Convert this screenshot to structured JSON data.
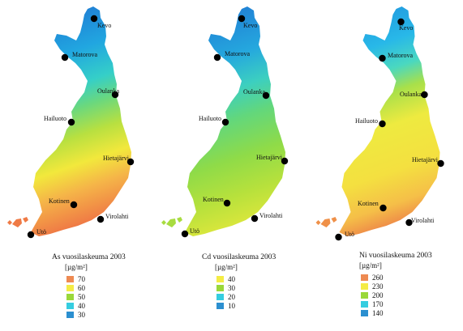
{
  "panels": [
    {
      "id": "as",
      "legend_title": "As vuosilaskeuma 2003",
      "legend_unit": "[µg/m²]",
      "legend": [
        {
          "value": "70",
          "color": "#ee8a52"
        },
        {
          "value": "60",
          "color": "#f4ec45"
        },
        {
          "value": "50",
          "color": "#9ad83a"
        },
        {
          "value": "40",
          "color": "#35cde0"
        },
        {
          "value": "30",
          "color": "#2b8fd0"
        }
      ],
      "gradient": [
        {
          "stop": 0.0,
          "color": "#1f6fd0"
        },
        {
          "stop": 0.25,
          "color": "#21a6e0"
        },
        {
          "stop": 0.4,
          "color": "#35cfc8"
        },
        {
          "stop": 0.5,
          "color": "#6ad87e"
        },
        {
          "stop": 0.62,
          "color": "#b8e040"
        },
        {
          "stop": 0.74,
          "color": "#f2e83c"
        },
        {
          "stop": 0.85,
          "color": "#f5b548"
        },
        {
          "stop": 1.0,
          "color": "#ef7a45"
        }
      ]
    },
    {
      "id": "cd",
      "legend_title": "Cd vuosilaskeuma 2003",
      "legend_unit": "[µg/m²]",
      "legend": [
        {
          "value": "40",
          "color": "#f4ec45"
        },
        {
          "value": "30",
          "color": "#9ad83a"
        },
        {
          "value": "20",
          "color": "#35cde0"
        },
        {
          "value": "10",
          "color": "#2b8fd0"
        }
      ],
      "gradient": [
        {
          "stop": 0.0,
          "color": "#1f72d2"
        },
        {
          "stop": 0.28,
          "color": "#25a8de"
        },
        {
          "stop": 0.42,
          "color": "#3ccfc0"
        },
        {
          "stop": 0.55,
          "color": "#62d77c"
        },
        {
          "stop": 0.72,
          "color": "#8fdb48"
        },
        {
          "stop": 0.88,
          "color": "#b7e13c"
        },
        {
          "stop": 1.0,
          "color": "#d7e63c"
        }
      ]
    },
    {
      "id": "ni",
      "legend_title": "Ni vuosilaskeuma 2003",
      "legend_unit": "[µg/m²]",
      "legend": [
        {
          "value": "260",
          "color": "#ee8a52"
        },
        {
          "value": "230",
          "color": "#f4ec45"
        },
        {
          "value": "200",
          "color": "#9ad83a"
        },
        {
          "value": "170",
          "color": "#35cde0"
        },
        {
          "value": "140",
          "color": "#2b8fd0"
        }
      ],
      "gradient": [
        {
          "stop": 0.0,
          "color": "#1f8fdc"
        },
        {
          "stop": 0.22,
          "color": "#28b8e8"
        },
        {
          "stop": 0.34,
          "color": "#4ad8c0"
        },
        {
          "stop": 0.44,
          "color": "#a8e04a"
        },
        {
          "stop": 0.58,
          "color": "#eeea40"
        },
        {
          "stop": 0.78,
          "color": "#f4e040"
        },
        {
          "stop": 0.92,
          "color": "#f5bf48"
        },
        {
          "stop": 1.0,
          "color": "#ef9048"
        }
      ]
    }
  ],
  "stations": [
    {
      "name": "Kevo"
    },
    {
      "name": "Matorova"
    },
    {
      "name": "Oulanka"
    },
    {
      "name": "Hailuoto"
    },
    {
      "name": "Hietajärvi"
    },
    {
      "name": "Kotinen"
    },
    {
      "name": "Virolahti"
    },
    {
      "name": "Utö"
    }
  ],
  "marker_color": "#000000"
}
